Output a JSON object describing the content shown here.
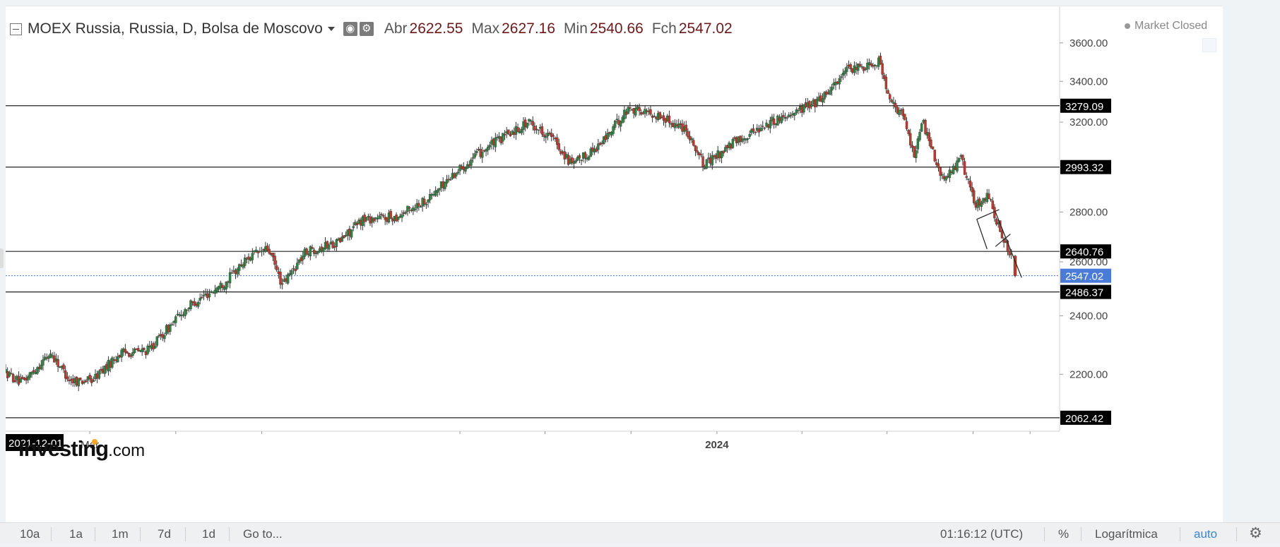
{
  "header": {
    "symbol": "MOEX Russia, Russia, D, Bolsa de Moscovo",
    "open_label": "Abr",
    "open_value": "2622.55",
    "high_label": "Max",
    "high_value": "2627.16",
    "low_label": "Min",
    "low_value": "2540.66",
    "close_label": "Fch",
    "close_value": "2547.02",
    "status": "Market Closed",
    "logo_main": "Investing",
    "logo_suffix": ".com"
  },
  "toolbar": {
    "ranges": [
      "10a",
      "1a",
      "1m",
      "7d",
      "1d"
    ],
    "goto": "Go to...",
    "time": "01:16:12 (UTC)",
    "percent": "%",
    "log": "Logarítmica",
    "auto": "auto"
  },
  "chart_data": {
    "type": "candlestick",
    "y_scale": "log",
    "ylim": [
      2060,
      3660
    ],
    "x_range": [
      "2021-12-01",
      "2024-11-15"
    ],
    "x_start_label": "2021-12-01",
    "x_tick_labels": [
      {
        "date": "2022-03-01",
        "label": "Mar"
      },
      {
        "date": "2024-01-01",
        "label": "2024"
      }
    ],
    "x_minor_ticks": [
      "2022-06-01",
      "2022-09-01",
      "2023-04-01",
      "2023-07-01",
      "2023-10-01",
      "2024-04-01",
      "2024-07-01",
      "2024-10-01",
      "2024-12-01"
    ],
    "y_tick_labels": [
      "2200.00",
      "2400.00",
      "2600.00",
      "2800.00",
      "3200.00",
      "3400.00",
      "3600.00"
    ],
    "y_ticks": [
      2200,
      2400,
      2600,
      2800,
      3200,
      3400,
      3600
    ],
    "horizontal_levels": [
      {
        "value": 3279.09,
        "label": "3279.09"
      },
      {
        "value": 2993.32,
        "label": "2993.32"
      },
      {
        "value": 2640.76,
        "label": "2640.76"
      },
      {
        "value": 2486.37,
        "label": "2486.37"
      },
      {
        "value": 2062.42,
        "label": "2062.42"
      }
    ],
    "last_price": {
      "value": 2547.02,
      "label": "2547.02"
    },
    "series": [
      {
        "trend": [
          [
            "2021-12-01",
            2210
          ],
          [
            "2021-12-20",
            2170
          ],
          [
            "2022-01-20",
            2270
          ],
          [
            "2022-02-10",
            2180
          ],
          [
            "2022-03-05",
            2180
          ],
          [
            "2022-04-05",
            2270
          ],
          [
            "2022-05-05",
            2280
          ],
          [
            "2022-06-15",
            2430
          ],
          [
            "2022-07-25",
            2520
          ],
          [
            "2022-08-20",
            2620
          ],
          [
            "2022-09-10",
            2650
          ],
          [
            "2022-09-25",
            2510
          ],
          [
            "2022-10-20",
            2640
          ],
          [
            "2022-11-25",
            2680
          ],
          [
            "2022-12-20",
            2770
          ],
          [
            "2023-01-25",
            2780
          ],
          [
            "2023-03-01",
            2860
          ],
          [
            "2023-04-01",
            2980
          ],
          [
            "2023-05-01",
            3080
          ],
          [
            "2023-06-15",
            3200
          ],
          [
            "2023-07-10",
            3130
          ],
          [
            "2023-08-01",
            3000
          ],
          [
            "2023-09-01",
            3100
          ],
          [
            "2023-10-01",
            3270
          ],
          [
            "2023-11-01",
            3230
          ],
          [
            "2023-12-01",
            3170
          ],
          [
            "2023-12-20",
            3000
          ],
          [
            "2024-01-20",
            3100
          ],
          [
            "2024-02-20",
            3180
          ],
          [
            "2024-03-20",
            3240
          ],
          [
            "2024-04-20",
            3300
          ],
          [
            "2024-05-20",
            3450
          ],
          [
            "2024-06-10",
            3480
          ],
          [
            "2024-06-25",
            3510
          ],
          [
            "2024-07-05",
            3300
          ],
          [
            "2024-07-20",
            3230
          ],
          [
            "2024-08-01",
            3050
          ],
          [
            "2024-08-10",
            3200
          ],
          [
            "2024-09-01",
            2930
          ],
          [
            "2024-09-20",
            3030
          ],
          [
            "2024-10-05",
            2830
          ],
          [
            "2024-10-20",
            2870
          ],
          [
            "2024-11-02",
            2700
          ],
          [
            "2024-11-14",
            2622
          ],
          [
            "2024-11-15",
            2560
          ]
        ],
        "last_candle": {
          "date": "2024-11-15",
          "open": 2622.55,
          "high": 2627.16,
          "low": 2540.66,
          "close": 2547.02
        }
      }
    ],
    "annotations": [
      {
        "type": "trend_line",
        "from": [
          "2024-10-25",
          2800
        ],
        "to": [
          "2024-11-22",
          2540
        ]
      },
      {
        "type": "trend_line",
        "from": [
          "2024-10-25",
          2660
        ],
        "to": [
          "2024-11-10",
          2710
        ]
      },
      {
        "type": "trend_line",
        "from": [
          "2024-10-05",
          2770
        ],
        "to": [
          "2024-10-29",
          2810
        ]
      },
      {
        "type": "trend_line",
        "from": [
          "2024-10-05",
          2770
        ],
        "to": [
          "2024-10-16",
          2650
        ]
      }
    ],
    "colors": {
      "up": "#2e8540",
      "down": "#c0392b",
      "last_price": "#4a7bd8",
      "level_label_bg": "#000000"
    }
  }
}
